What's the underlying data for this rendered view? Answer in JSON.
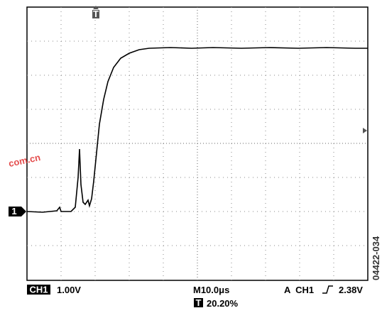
{
  "screen": {
    "channel_marker": "1",
    "trigger_marker": "T",
    "watermark": "com.cn"
  },
  "readout": {
    "channel": "CH1",
    "scale": "1.00V",
    "timebase": "M10.0μs",
    "trigger_source": "A  CH1",
    "trigger_level": "2.38V",
    "trigger_marker": "T",
    "trigger_position": "20.20%"
  },
  "figure_id": "04422-034"
}
